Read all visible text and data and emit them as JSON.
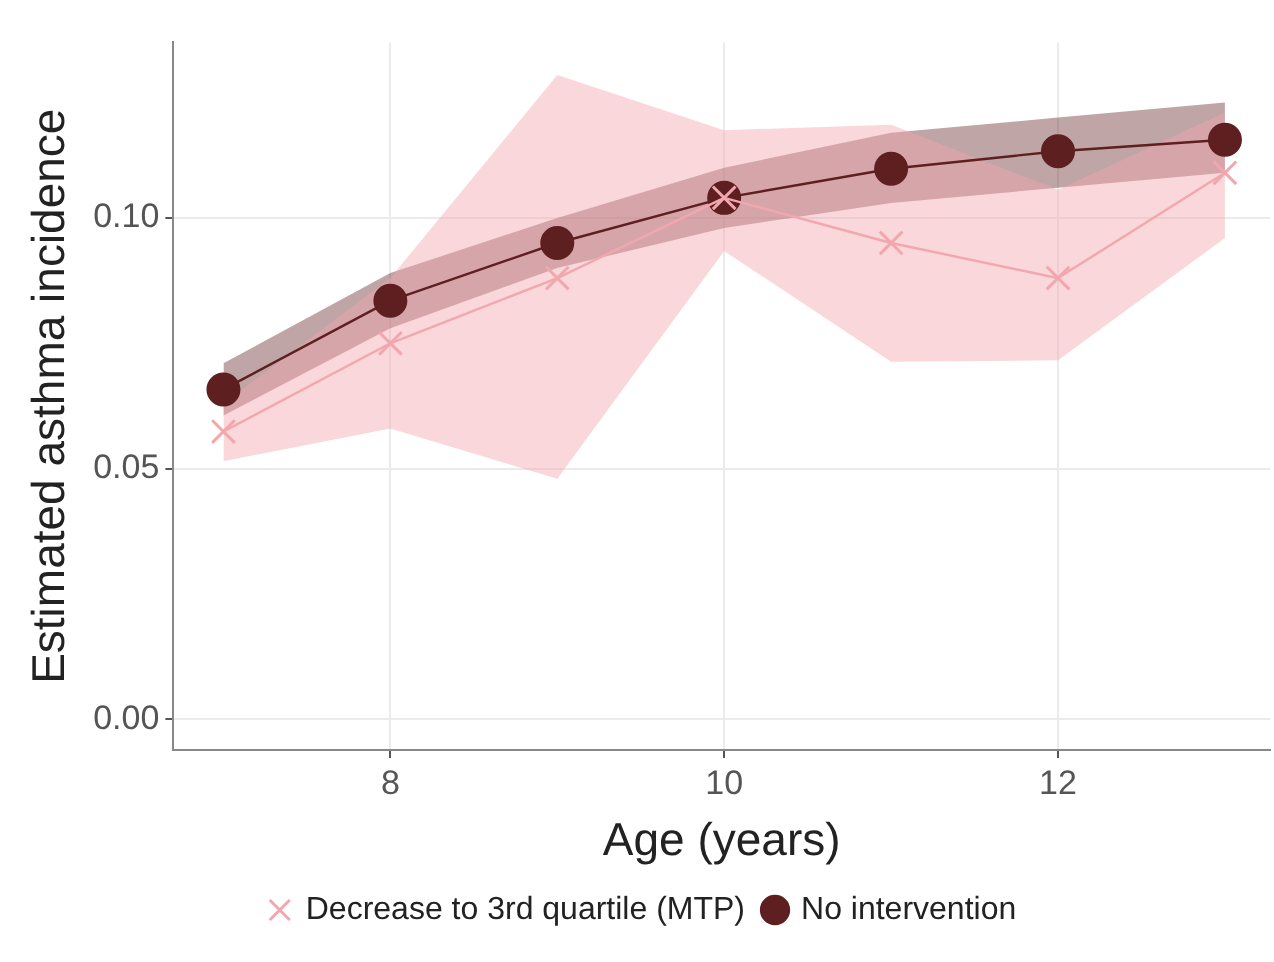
{
  "chart_data": {
    "type": "line",
    "xlabel": "Age (years)",
    "ylabel": "Estimated asthma incidence",
    "x": [
      7,
      8,
      9,
      10,
      11,
      12,
      13
    ],
    "series": [
      {
        "name": "Decrease to 3rd quartile (MTP)",
        "color": "#f2a7af",
        "marker": "cross",
        "values": [
          0.0574,
          0.075,
          0.088,
          0.104,
          0.095,
          0.088,
          0.109
        ],
        "lower": [
          0.0515,
          0.058,
          0.048,
          0.0934,
          0.0713,
          0.0716,
          0.096
        ],
        "upper": [
          0.063,
          0.088,
          0.1285,
          0.1175,
          0.1186,
          0.1056,
          0.121
        ]
      },
      {
        "name": "No intervention",
        "color": "#5e1f20",
        "marker": "circle",
        "values": [
          0.0658,
          0.0835,
          0.095,
          0.104,
          0.1098,
          0.1133,
          0.1156
        ],
        "lower": [
          0.0606,
          0.078,
          0.09,
          0.098,
          0.103,
          0.106,
          0.109
        ],
        "upper": [
          0.071,
          0.089,
          0.1,
          0.11,
          0.117,
          0.12,
          0.123
        ]
      }
    ],
    "xlim": [
      6.7,
      13.27
    ],
    "xticks": [
      8,
      10,
      12
    ],
    "ylim": [
      -0.0061,
      0.135
    ],
    "yticks": [
      {
        "value": 0,
        "label": "0.00"
      },
      {
        "value": 0.05,
        "label": "0.05"
      },
      {
        "value": 0.1,
        "label": "0.10"
      }
    ],
    "grid": true,
    "legend": "bottom"
  }
}
